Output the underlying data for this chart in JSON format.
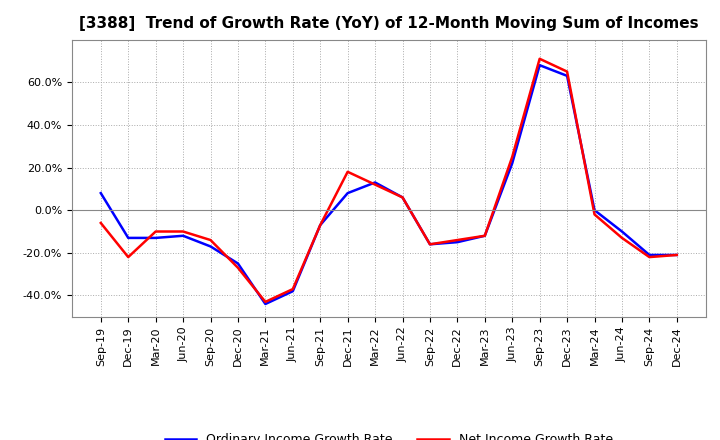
{
  "title": "[3388]  Trend of Growth Rate (YoY) of 12-Month Moving Sum of Incomes",
  "x_labels": [
    "Sep-19",
    "Dec-19",
    "Mar-20",
    "Jun-20",
    "Sep-20",
    "Dec-20",
    "Mar-21",
    "Jun-21",
    "Sep-21",
    "Dec-21",
    "Mar-22",
    "Jun-22",
    "Sep-22",
    "Dec-22",
    "Mar-23",
    "Jun-23",
    "Sep-23",
    "Dec-23",
    "Mar-24",
    "Jun-24",
    "Sep-24",
    "Dec-24"
  ],
  "ordinary_income": [
    0.08,
    -0.13,
    -0.13,
    -0.12,
    -0.17,
    -0.25,
    -0.44,
    -0.38,
    -0.07,
    0.08,
    0.13,
    0.06,
    -0.16,
    -0.15,
    -0.12,
    0.22,
    0.68,
    0.63,
    0.0,
    -0.1,
    -0.21,
    -0.21
  ],
  "net_income": [
    -0.06,
    -0.22,
    -0.1,
    -0.1,
    -0.14,
    -0.27,
    -0.43,
    -0.37,
    -0.07,
    0.18,
    0.12,
    0.06,
    -0.16,
    -0.14,
    -0.12,
    0.25,
    0.71,
    0.65,
    -0.02,
    -0.13,
    -0.22,
    -0.21
  ],
  "ordinary_color": "#0000ff",
  "net_color": "#ff0000",
  "ylim": [
    -0.5,
    0.8
  ],
  "yticks": [
    -0.4,
    -0.2,
    0.0,
    0.2,
    0.4,
    0.6
  ],
  "background_color": "#ffffff",
  "grid_color": "#aaaaaa",
  "legend_ordinary": "Ordinary Income Growth Rate",
  "legend_net": "Net Income Growth Rate",
  "title_fontsize": 11,
  "tick_fontsize": 8,
  "linewidth": 1.8
}
